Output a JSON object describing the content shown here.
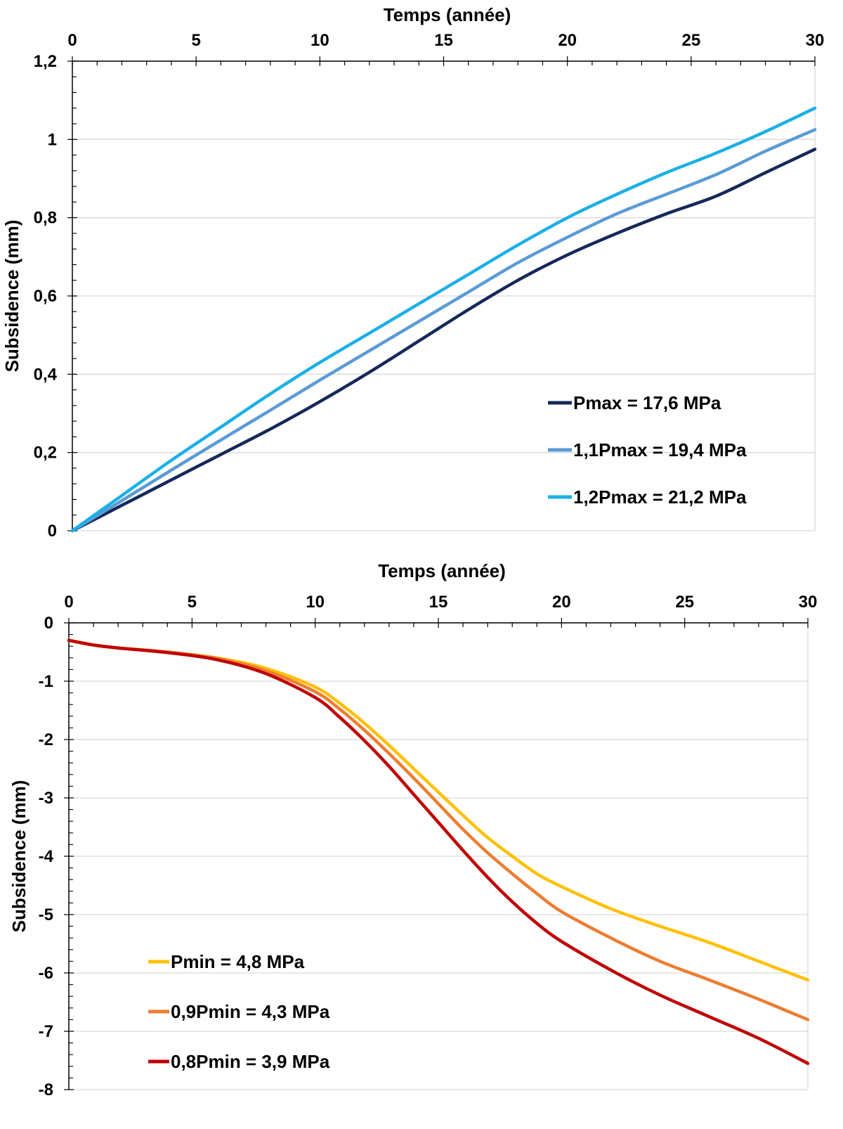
{
  "chart_data": [
    {
      "type": "line",
      "title": "",
      "xlabel": "Temps (année)",
      "ylabel": "Subsidence (mm)",
      "x_axis_position": "top",
      "xlim": [
        0,
        30
      ],
      "ylim": [
        0,
        1.2
      ],
      "x_ticks": [
        0,
        5,
        10,
        15,
        20,
        25,
        30
      ],
      "x_tick_labels": [
        "0",
        "5",
        "10",
        "15",
        "20",
        "25",
        "30"
      ],
      "y_ticks": [
        0,
        0.2,
        0.4,
        0.6,
        0.8,
        1,
        1.2
      ],
      "y_tick_labels": [
        "0",
        "0,2",
        "0,4",
        "0,6",
        "0,8",
        "1",
        "1,2"
      ],
      "grid": "horizontal",
      "legend_position": "bottom-right",
      "x": [
        0,
        2,
        4,
        6,
        8,
        10,
        12,
        14,
        16,
        18,
        20,
        22,
        24,
        26,
        28,
        30
      ],
      "series": [
        {
          "name": "Pmax = 17,6 MPa",
          "color": "#14285a",
          "values": [
            0,
            0.065,
            0.13,
            0.195,
            0.26,
            0.33,
            0.405,
            0.485,
            0.565,
            0.64,
            0.705,
            0.76,
            0.81,
            0.855,
            0.915,
            0.975
          ]
        },
        {
          "name": "1,1Pmax = 19,4 MPa",
          "color": "#5b9bd5",
          "values": [
            0,
            0.077,
            0.155,
            0.232,
            0.308,
            0.385,
            0.46,
            0.535,
            0.61,
            0.685,
            0.75,
            0.81,
            0.86,
            0.91,
            0.97,
            1.025
          ]
        },
        {
          "name": "1,2Pmax = 21,2 MPa",
          "color": "#1ab0e6",
          "values": [
            0,
            0.09,
            0.18,
            0.265,
            0.35,
            0.43,
            0.505,
            0.58,
            0.655,
            0.73,
            0.8,
            0.86,
            0.915,
            0.965,
            1.02,
            1.08
          ]
        }
      ]
    },
    {
      "type": "line",
      "title": "",
      "xlabel": "Temps (année)",
      "ylabel": "Subsidence (mm)",
      "x_axis_position": "top",
      "xlim": [
        0,
        30
      ],
      "ylim": [
        -8,
        0
      ],
      "x_ticks": [
        0,
        5,
        10,
        15,
        20,
        25,
        30
      ],
      "x_tick_labels": [
        "0",
        "5",
        "10",
        "15",
        "20",
        "25",
        "30"
      ],
      "y_ticks": [
        0,
        -1,
        -2,
        -3,
        -4,
        -5,
        -6,
        -7,
        -8
      ],
      "y_tick_labels": [
        "0",
        "-1",
        "-2",
        "-3",
        "-4",
        "-5",
        "-6",
        "-7",
        "-8"
      ],
      "grid": "horizontal",
      "legend_position": "bottom-left",
      "x": [
        0,
        1,
        2,
        4,
        6,
        8,
        10,
        11,
        12,
        13,
        14,
        15,
        16,
        17,
        18,
        19,
        20,
        22,
        24,
        26,
        28,
        30
      ],
      "series": [
        {
          "name": "Pmin = 4,8 MPa",
          "color": "#ffc000",
          "values": [
            -0.3,
            -0.38,
            -0.43,
            -0.5,
            -0.6,
            -0.78,
            -1.1,
            -1.38,
            -1.72,
            -2.1,
            -2.5,
            -2.9,
            -3.3,
            -3.68,
            -4.0,
            -4.3,
            -4.52,
            -4.9,
            -5.2,
            -5.48,
            -5.8,
            -6.12
          ]
        },
        {
          "name": "0,9Pmin = 4,3 MPa",
          "color": "#ed7d31",
          "values": [
            -0.3,
            -0.38,
            -0.43,
            -0.5,
            -0.61,
            -0.82,
            -1.18,
            -1.48,
            -1.84,
            -2.24,
            -2.66,
            -3.1,
            -3.54,
            -3.94,
            -4.3,
            -4.64,
            -4.95,
            -5.4,
            -5.8,
            -6.12,
            -6.45,
            -6.8
          ]
        },
        {
          "name": "0,8Pmin = 3,9 MPa",
          "color": "#c00000",
          "values": [
            -0.3,
            -0.38,
            -0.43,
            -0.51,
            -0.63,
            -0.87,
            -1.28,
            -1.62,
            -2.02,
            -2.46,
            -2.94,
            -3.42,
            -3.9,
            -4.36,
            -4.78,
            -5.15,
            -5.46,
            -5.95,
            -6.38,
            -6.75,
            -7.12,
            -7.55
          ]
        }
      ]
    }
  ]
}
